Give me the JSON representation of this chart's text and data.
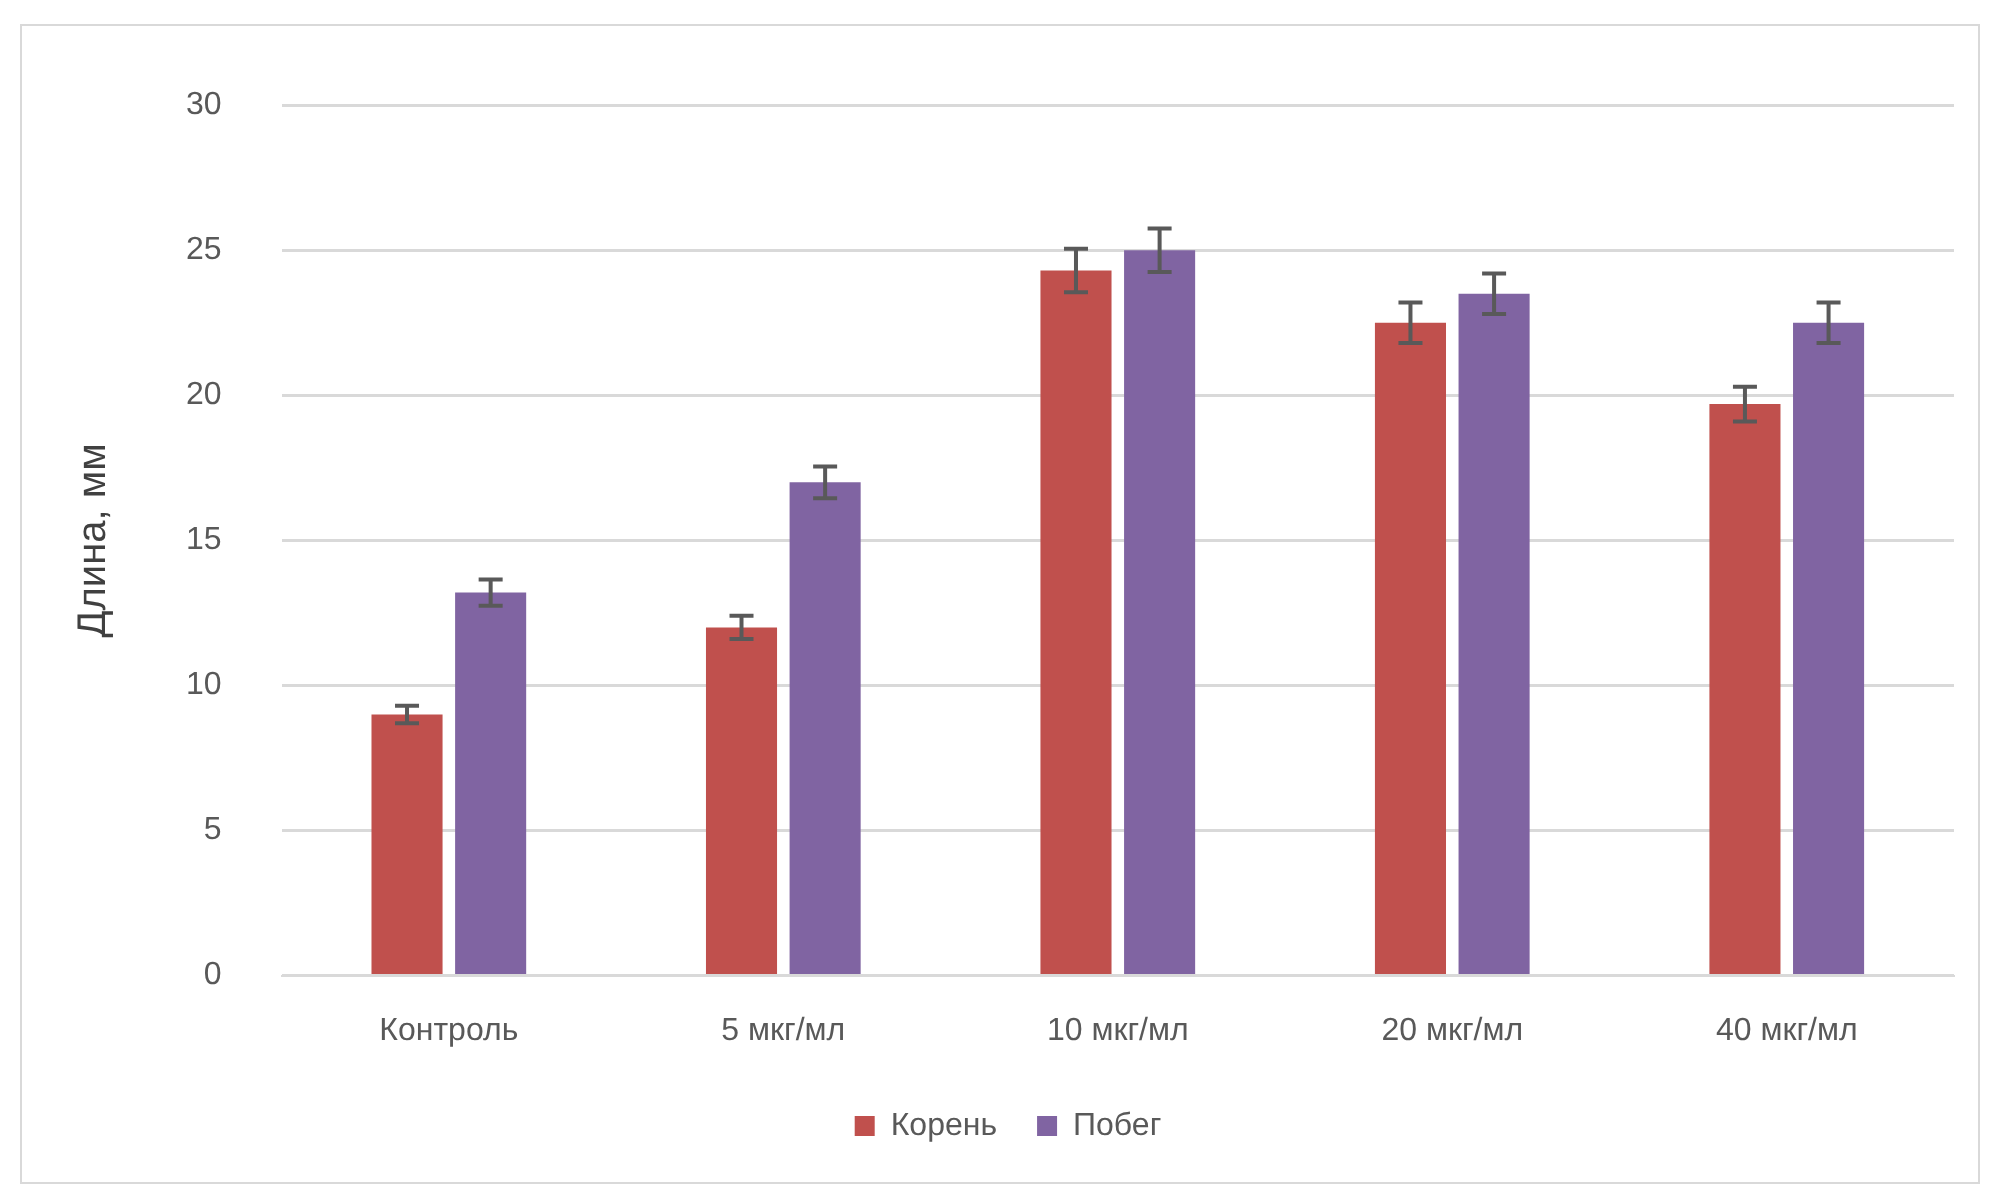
{
  "chart_data": {
    "type": "bar",
    "ylabel": "Длина, мм",
    "categories": [
      "Контроль",
      "5 мкг/мл",
      "10 мкг/мл",
      "20 мкг/мл",
      "40 мкг/мл"
    ],
    "series": [
      {
        "name": "Корень",
        "color": "#c0504d",
        "values": [
          9,
          12,
          24.3,
          22.5,
          19.7
        ],
        "errors": [
          0.3,
          0.4,
          0.75,
          0.7,
          0.6
        ]
      },
      {
        "name": "Побег",
        "color": "#8064a2",
        "values": [
          13.2,
          17,
          25,
          23.5,
          22.5
        ],
        "errors": [
          0.45,
          0.55,
          0.75,
          0.7,
          0.7
        ]
      }
    ],
    "ylim": [
      0,
      30
    ],
    "yticks": [
      0,
      5,
      10,
      15,
      20,
      25,
      30
    ],
    "grid": "y",
    "legend": "bottom"
  }
}
